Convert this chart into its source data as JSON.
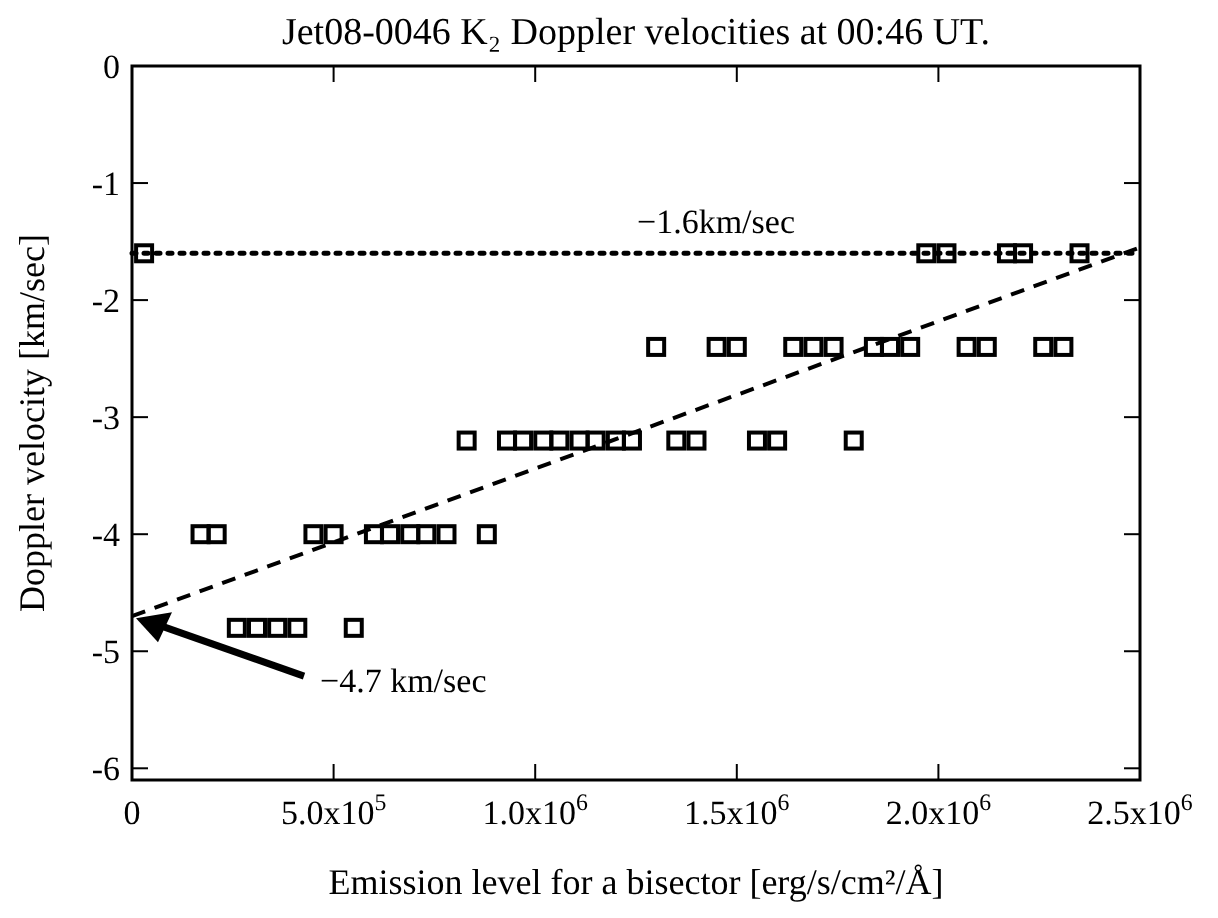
{
  "chart_data": {
    "type": "scatter",
    "title": "Jet08-0046 K₂ Doppler velocities at 00:46 UT.",
    "xlabel": "Emission level for a bisector [erg/s/cm²/Å]",
    "ylabel": "Doppler velocity [km/sec]",
    "xlim": [
      0,
      2500000
    ],
    "ylim": [
      -6.1,
      0
    ],
    "xticks": [
      0,
      {
        "value": 500000,
        "label": "5.0x10$^{5}$"
      },
      {
        "value": 1000000,
        "label": "1.0x10$^{6}$"
      },
      {
        "value": 1500000,
        "label": "1.5x10$^{6}$"
      },
      {
        "value": 2000000,
        "label": "2.0x10$^{6}$"
      },
      {
        "value": 2500000,
        "label": "2.5x10$^{6}$"
      }
    ],
    "yticks": [
      0,
      -1,
      -2,
      -3,
      -4,
      -5,
      -6
    ],
    "marker": "square",
    "grid": false,
    "series": [
      {
        "color": "#000000",
        "x": [
          30000,
          1970000,
          2020000,
          2170000,
          2210000,
          2350000,
          1300000,
          1450000,
          1500000,
          1640000,
          1690000,
          1740000,
          1840000,
          1880000,
          1930000,
          2070000,
          2120000,
          2260000,
          2310000,
          830000,
          930000,
          970000,
          1020000,
          1060000,
          1110000,
          1150000,
          1200000,
          1240000,
          1350000,
          1400000,
          1550000,
          1600000,
          1790000,
          170000,
          210000,
          450000,
          500000,
          600000,
          640000,
          690000,
          730000,
          780000,
          880000,
          260000,
          310000,
          360000,
          410000,
          550000
        ],
        "values": [
          -1.6,
          -1.6,
          -1.6,
          -1.6,
          -1.6,
          -1.6,
          -2.4,
          -2.4,
          -2.4,
          -2.4,
          -2.4,
          -2.4,
          -2.4,
          -2.4,
          -2.4,
          -2.4,
          -2.4,
          -2.4,
          -2.4,
          -3.2,
          -3.2,
          -3.2,
          -3.2,
          -3.2,
          -3.2,
          -3.2,
          -3.2,
          -3.2,
          -3.2,
          -3.2,
          -3.2,
          -3.2,
          -3.2,
          -4.0,
          -4.0,
          -4.0,
          -4.0,
          -4.0,
          -4.0,
          -4.0,
          -4.0,
          -4.0,
          -4.0,
          -4.8,
          -4.8,
          -4.8,
          -4.8,
          -4.8
        ]
      },
      {
        "type": "line",
        "color": "#000000",
        "line_style": "dashed",
        "marker": "none",
        "x": [
          0,
          2500000
        ],
        "values": [
          -4.7,
          -1.55
        ]
      }
    ],
    "ref_lines": [
      {
        "axis": "y",
        "value": -1.6,
        "label": "−1.6km/sec",
        "line_style": "dotted",
        "color": "#000000"
      }
    ],
    "annotations": [
      "−4.7 km/sec"
    ]
  }
}
